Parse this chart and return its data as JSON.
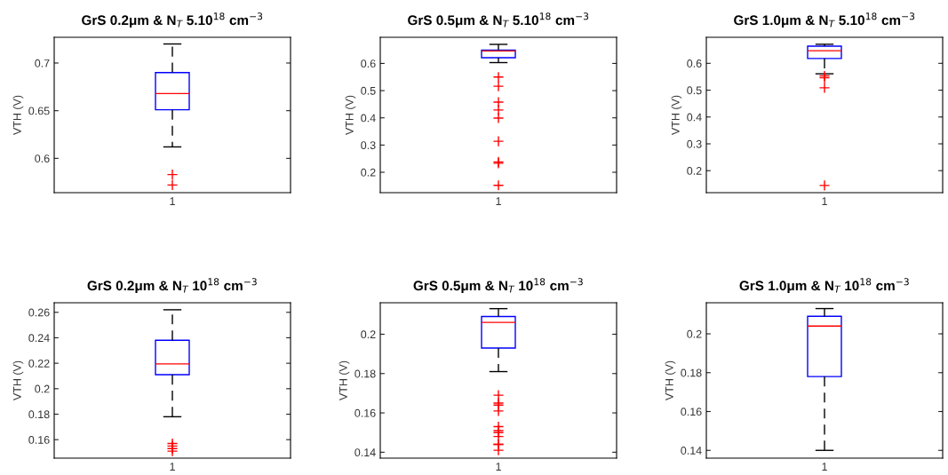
{
  "chart_data": [
    {
      "type": "box",
      "title": "GrS 0.2μm & N$_{T}$ 5.10$^{18}$ cm$^{−3}$",
      "ylabel": "VTH (V)",
      "categories": [
        "1"
      ],
      "ylim": [
        0.564,
        0.727
      ],
      "yticks": [
        0.6,
        0.65,
        0.7
      ],
      "grid": false,
      "boxes": [
        {
          "low": 0.612,
          "q1": 0.651,
          "median": 0.668,
          "q3": 0.69,
          "high": 0.72,
          "outliers": [
            0.583,
            0.572
          ]
        }
      ]
    },
    {
      "type": "box",
      "title": "GrS 0.5μm & N$_{T}$ 5.10$^{18}$ cm$^{−3}$",
      "ylabel": "VTH (V)",
      "categories": [
        "1"
      ],
      "ylim": [
        0.125,
        0.696
      ],
      "yticks": [
        0.2,
        0.3,
        0.4,
        0.5,
        0.6
      ],
      "grid": false,
      "boxes": [
        {
          "low": 0.603,
          "q1": 0.621,
          "median": 0.646,
          "q3": 0.649,
          "high": 0.67,
          "outliers": [
            0.55,
            0.516,
            0.458,
            0.429,
            0.399,
            0.314,
            0.238,
            0.233,
            0.152
          ]
        }
      ]
    },
    {
      "type": "box",
      "title": "GrS 1.0μm & N$_{T}$ 5.10$^{18}$ cm$^{−3}$",
      "ylabel": "VTH (V)",
      "categories": [
        "1"
      ],
      "ylim": [
        0.118,
        0.697
      ],
      "yticks": [
        0.2,
        0.3,
        0.4,
        0.5,
        0.6
      ],
      "grid": false,
      "boxes": [
        {
          "low": 0.561,
          "q1": 0.618,
          "median": 0.647,
          "q3": 0.664,
          "high": 0.671,
          "outliers": [
            0.553,
            0.546,
            0.509,
            0.145
          ]
        }
      ]
    },
    {
      "type": "box",
      "title": "GrS 0.2μm & N$_{T}$ 10$^{18}$ cm$^{−3}$",
      "ylabel": "VTH (V)",
      "categories": [
        "1"
      ],
      "ylim": [
        0.1455,
        0.2675
      ],
      "yticks": [
        0.16,
        0.18,
        0.2,
        0.22,
        0.24,
        0.26
      ],
      "grid": false,
      "boxes": [
        {
          "low": 0.178,
          "q1": 0.211,
          "median": 0.2195,
          "q3": 0.238,
          "high": 0.262,
          "outliers": [
            0.157,
            0.155,
            0.153,
            0.151
          ]
        }
      ]
    },
    {
      "type": "box",
      "title": "GrS 0.5μm & N$_{T}$ 10$^{18}$ cm$^{−3}$",
      "ylabel": "VTH (V)",
      "categories": [
        "1"
      ],
      "ylim": [
        0.137,
        0.216
      ],
      "yticks": [
        0.14,
        0.16,
        0.18,
        0.2
      ],
      "grid": false,
      "boxes": [
        {
          "low": 0.181,
          "q1": 0.193,
          "median": 0.206,
          "q3": 0.209,
          "high": 0.213,
          "outliers": [
            0.169,
            0.165,
            0.164,
            0.161,
            0.153,
            0.151,
            0.15,
            0.148,
            0.144,
            0.144,
            0.141
          ]
        }
      ]
    },
    {
      "type": "box",
      "title": "GrS 1.0μm & N$_{T}$ 10$^{18}$ cm$^{−3}$",
      "ylabel": "VTH (V)",
      "categories": [
        "1"
      ],
      "ylim": [
        0.136,
        0.216
      ],
      "yticks": [
        0.14,
        0.16,
        0.18,
        0.2
      ],
      "grid": false,
      "boxes": [
        {
          "low": 0.14,
          "q1": 0.178,
          "median": 0.204,
          "q3": 0.209,
          "high": 0.213
        }
      ]
    }
  ]
}
